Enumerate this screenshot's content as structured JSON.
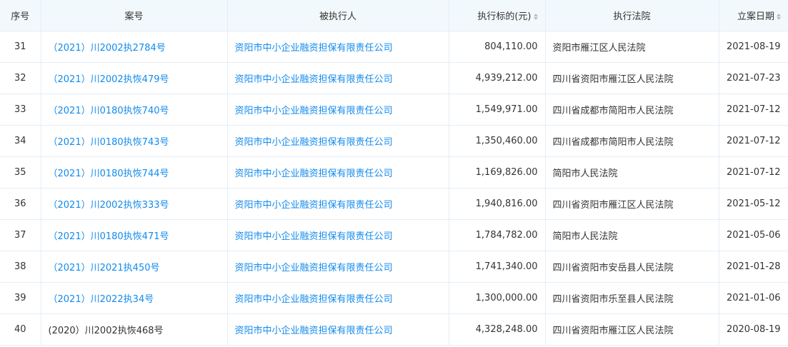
{
  "colors": {
    "link": "#128bed",
    "header_bg": "#f2f9fc",
    "border": "#e4eef6"
  },
  "headers": [
    "序号",
    "案号",
    "被执行人",
    "执行标的(元)",
    "执行法院",
    "立案日期"
  ],
  "rows": [
    {
      "no": "31",
      "case": "（2021）川2002执2784号",
      "case_link": true,
      "party": "资阳市中小企业融资担保有限责任公司",
      "amount": "804,110.00",
      "court": "资阳市雁江区人民法院",
      "date": "2021-08-19"
    },
    {
      "no": "32",
      "case": "（2021）川2002执恢479号",
      "case_link": true,
      "party": "资阳市中小企业融资担保有限责任公司",
      "amount": "4,939,212.00",
      "court": "四川省资阳市雁江区人民法院",
      "date": "2021-07-23"
    },
    {
      "no": "33",
      "case": "（2021）川0180执恢740号",
      "case_link": true,
      "party": "资阳市中小企业融资担保有限责任公司",
      "amount": "1,549,971.00",
      "court": "四川省成都市简阳市人民法院",
      "date": "2021-07-12"
    },
    {
      "no": "34",
      "case": "（2021）川0180执恢743号",
      "case_link": true,
      "party": "资阳市中小企业融资担保有限责任公司",
      "amount": "1,350,460.00",
      "court": "四川省成都市简阳市人民法院",
      "date": "2021-07-12"
    },
    {
      "no": "35",
      "case": "（2021）川0180执恢744号",
      "case_link": true,
      "party": "资阳市中小企业融资担保有限责任公司",
      "amount": "1,169,826.00",
      "court": "简阳市人民法院",
      "date": "2021-07-12"
    },
    {
      "no": "36",
      "case": "（2021）川2002执恢333号",
      "case_link": true,
      "party": "资阳市中小企业融资担保有限责任公司",
      "amount": "1,940,816.00",
      "court": "四川省资阳市雁江区人民法院",
      "date": "2021-05-12"
    },
    {
      "no": "37",
      "case": "（2021）川0180执恢471号",
      "case_link": true,
      "party": "资阳市中小企业融资担保有限责任公司",
      "amount": "1,784,782.00",
      "court": "简阳市人民法院",
      "date": "2021-05-06"
    },
    {
      "no": "38",
      "case": "（2021）川2021执450号",
      "case_link": true,
      "party": "资阳市中小企业融资担保有限责任公司",
      "amount": "1,741,340.00",
      "court": "四川省资阳市安岳县人民法院",
      "date": "2021-01-28"
    },
    {
      "no": "39",
      "case": "（2021）川2022执34号",
      "case_link": true,
      "party": "资阳市中小企业融资担保有限责任公司",
      "amount": "1,300,000.00",
      "court": "四川省资阳市乐至县人民法院",
      "date": "2021-01-06"
    },
    {
      "no": "40",
      "case": "(2020）川2002执恢468号",
      "case_link": false,
      "party": "资阳市中小企业融资担保有限责任公司",
      "amount": "4,328,248.00",
      "court": "四川省资阳市雁江区人民法院",
      "date": "2020-08-19"
    }
  ]
}
